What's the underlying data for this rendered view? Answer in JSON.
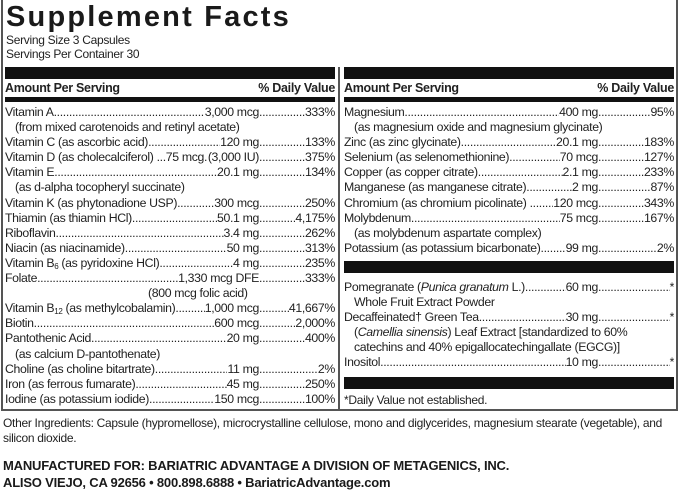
{
  "title": "Supplement Facts",
  "serving_size": "Serving Size 3 Capsules",
  "servings_per_container": "Servings Per Container 30",
  "header": {
    "amount": "Amount Per Serving",
    "dv": "% Daily Value"
  },
  "left": [
    {
      "name": "Vitamin A",
      "amount": "3,000 mcg",
      "dv": "333%",
      "sub": "(from mixed carotenoids and retinyl acetate)"
    },
    {
      "name": "Vitamin C (as ascorbic acid)",
      "amount": "120 mg",
      "dv": "133%"
    },
    {
      "name": "Vitamin D (as cholecalciferol) ...75 mcg",
      "amount": "(3,000 IU)",
      "dv": "375%"
    },
    {
      "name": "Vitamin E",
      "amount": "20.1 mg",
      "dv": "134%",
      "sub": "(as d-alpha tocopheryl succinate)"
    },
    {
      "name": "Vitamin K (as phytonadione USP)",
      "amount": "300 mcg",
      "dv": "250%"
    },
    {
      "name": "Thiamin (as thiamin HCl)",
      "amount": "50.1 mg",
      "dv": "4,175%"
    },
    {
      "name": "Riboflavin",
      "amount": "3.4 mg",
      "dv": "262%"
    },
    {
      "name": "Niacin (as niacinamide)",
      "amount": "50 mg",
      "dv": "313%"
    },
    {
      "name": "Vitamin B",
      "subscript": "6",
      "name_rest": " (as pyridoxine HCl)",
      "amount": "4 mg",
      "dv": "235%"
    },
    {
      "name": "Folate",
      "amount": "1,330 mcg DFE",
      "dv": "333%",
      "sub_center": "(800 mcg folic acid)"
    },
    {
      "name": "Vitamin B",
      "subscript": "12",
      "name_rest": " (as methylcobalamin)",
      "amount": "1,000 mcg",
      "dv": "41,667%"
    },
    {
      "name": "Biotin",
      "amount": "600 mcg",
      "dv": "2,000%"
    },
    {
      "name": "Pantothenic Acid",
      "amount": "20 mg",
      "dv": "400%",
      "sub": "(as calcium D-pantothenate)"
    },
    {
      "name": "Choline (as choline bitartrate)",
      "amount": "11 mg",
      "dv": "2%"
    },
    {
      "name": "Iron (as ferrous fumarate)",
      "amount": "45 mg",
      "dv": "250%"
    },
    {
      "name": "Iodine (as potassium iodide)",
      "amount": "150 mcg",
      "dv": "100%"
    }
  ],
  "right": [
    {
      "name": "Magnesium",
      "amount": "400 mg",
      "dv": "95%",
      "sub": "(as magnesium oxide and magnesium glycinate)"
    },
    {
      "name": "Zinc (as zinc glycinate)",
      "amount": "20.1 mg",
      "dv": "183%"
    },
    {
      "name": "Selenium (as selenomethionine)",
      "amount": "70 mcg",
      "dv": "127%"
    },
    {
      "name": "Copper (as copper citrate)",
      "amount": "2.1 mg",
      "dv": "233%"
    },
    {
      "name": "Manganese (as manganese citrate)",
      "amount": "2 mg",
      "dv": "87%"
    },
    {
      "name": "Chromium (as chromium picolinate) ...",
      "amount": "120 mcg",
      "dv": "343%"
    },
    {
      "name": "Molybdenum",
      "amount": "75 mcg",
      "dv": "167%",
      "sub": "(as molybdenum aspartate complex)"
    },
    {
      "name": "Potassium (as potassium bicarbonate)...",
      "amount": "99 mg",
      "dv": "2%"
    }
  ],
  "other": [
    {
      "name": "Pomegranate (",
      "italic": "Punica granatum",
      "name_rest": " L.)",
      "amount": "60 mg",
      "dv": "*",
      "sub": "Whole Fruit Extract Powder"
    },
    {
      "name": "Decaffeinated† Green Tea",
      "amount": "30 mg",
      "dv": "*",
      "sub_italic": "Camellia sinensis",
      "sub": ") Leaf Extract [standardized to 60%",
      "sub2": "catechins and 40% epigallocatechingallate (EGCG)]"
    },
    {
      "name": "Inositol",
      "amount": "10 mg",
      "dv": "*"
    }
  ],
  "footnote": "*Daily Value not established.",
  "other_ingredients": "Other Ingredients: Capsule (hypromellose), microcrystalline cellulose, mono and diglycerides, magnesium stearate (vegetable), and silicon dioxide.",
  "manufacturer_line1": "MANUFACTURED FOR: BARIATRIC ADVANTAGE A DIVISION OF METAGENICS, INC.",
  "manufacturer_line2": "ALISO VIEJO, CA 92656 • 800.898.6888 • BariatricAdvantage.com"
}
